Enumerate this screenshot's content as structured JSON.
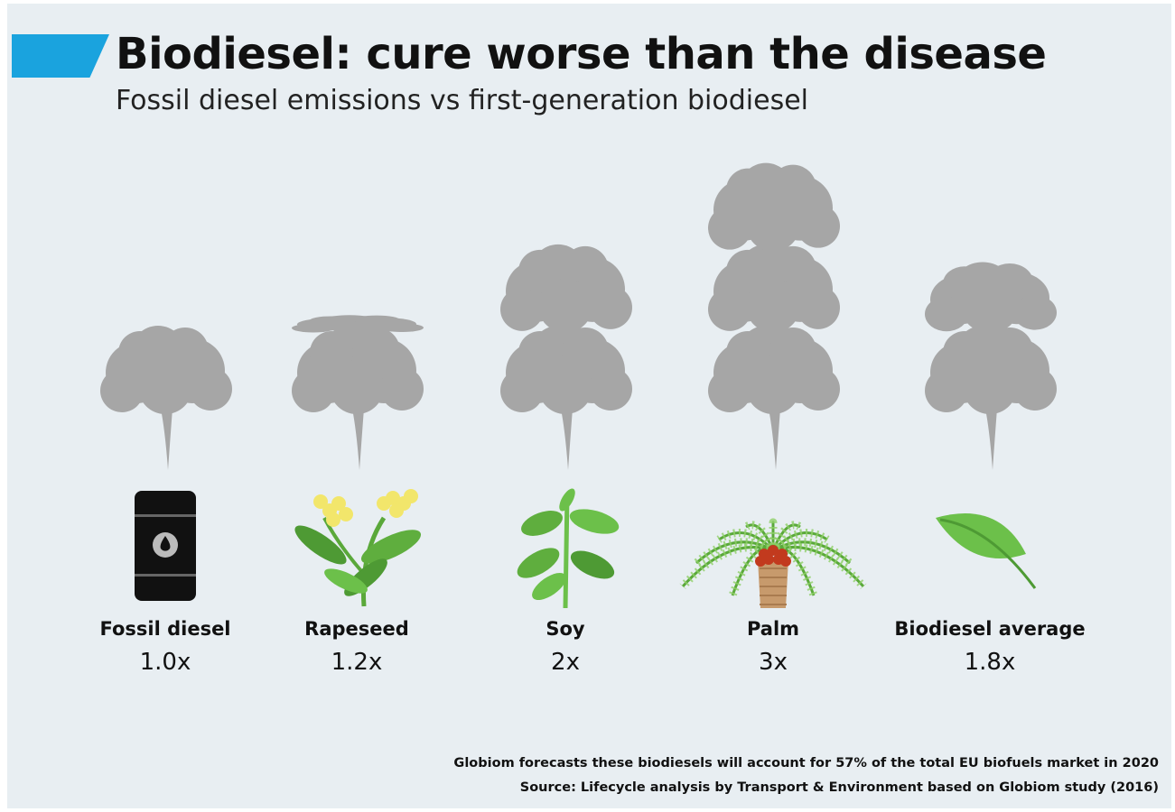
{
  "header": {
    "title": "Biodiesel: cure worse than the disease",
    "subtitle": "Fossil diesel emissions vs first-generation biodiesel"
  },
  "colors": {
    "accent": "#1aa3de",
    "background": "#e8eef2",
    "smoke": "#a6a6a6",
    "leaf": "#6cc04a"
  },
  "chart_data": {
    "type": "bar",
    "title": "Biodiesel: cure worse than the disease",
    "subtitle": "Fossil diesel emissions vs first-generation biodiesel",
    "categories": [
      "Fossil diesel",
      "Rapeseed",
      "Soy",
      "Palm",
      "Biodiesel average"
    ],
    "values": [
      1.0,
      1.2,
      2,
      3,
      1.8
    ],
    "value_labels": [
      "1.0x",
      "1.2x",
      "2x",
      "3x",
      "1.8x"
    ],
    "icons": [
      "oil-barrel-icon",
      "rapeseed-plant-icon",
      "soy-plant-icon",
      "palm-tree-icon",
      "leaf-icon"
    ],
    "mark": "smoke-cloud",
    "grid": false
  },
  "footer": {
    "note": "Globiom forecasts these biodiesels will account for 57% of the total EU biofuels market in 2020",
    "source": "Source: Lifecycle analysis by Transport & Environment based on Globiom study (2016)"
  }
}
